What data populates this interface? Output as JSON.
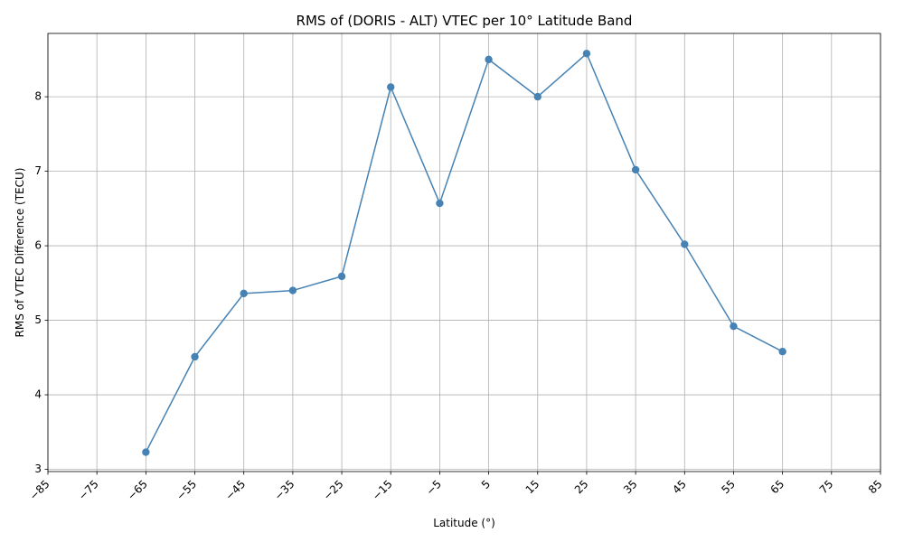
{
  "chart_data": {
    "type": "line",
    "title": "RMS of (DORIS - ALT) VTEC per 10° Latitude Band",
    "xlabel": "Latitude (°)",
    "ylabel": "RMS of VTEC Difference (TECU)",
    "xlim": [
      -85,
      85
    ],
    "ylim": [
      2.97,
      8.85
    ],
    "x_ticks": [
      -85,
      -75,
      -65,
      -55,
      -45,
      -35,
      -25,
      -15,
      -5,
      5,
      15,
      25,
      35,
      45,
      55,
      65,
      75,
      85
    ],
    "x_tick_labels": [
      "−85",
      "−75",
      "−65",
      "−55",
      "−45",
      "−35",
      "−25",
      "−15",
      "−5",
      "5",
      "15",
      "25",
      "35",
      "45",
      "55",
      "65",
      "75",
      "85"
    ],
    "y_ticks": [
      3,
      4,
      5,
      6,
      7,
      8
    ],
    "y_tick_labels": [
      "3",
      "4",
      "5",
      "6",
      "7",
      "8"
    ],
    "grid": true,
    "series": [
      {
        "color": "#4682b4",
        "marker": "circle",
        "x": [
          -65,
          -55,
          -45,
          -35,
          -25,
          -15,
          -5,
          5,
          15,
          25,
          35,
          45,
          55,
          65
        ],
        "y": [
          3.23,
          4.51,
          5.36,
          5.4,
          5.59,
          8.13,
          6.57,
          8.5,
          8.0,
          8.58,
          7.02,
          6.02,
          4.92,
          4.58
        ]
      }
    ]
  }
}
